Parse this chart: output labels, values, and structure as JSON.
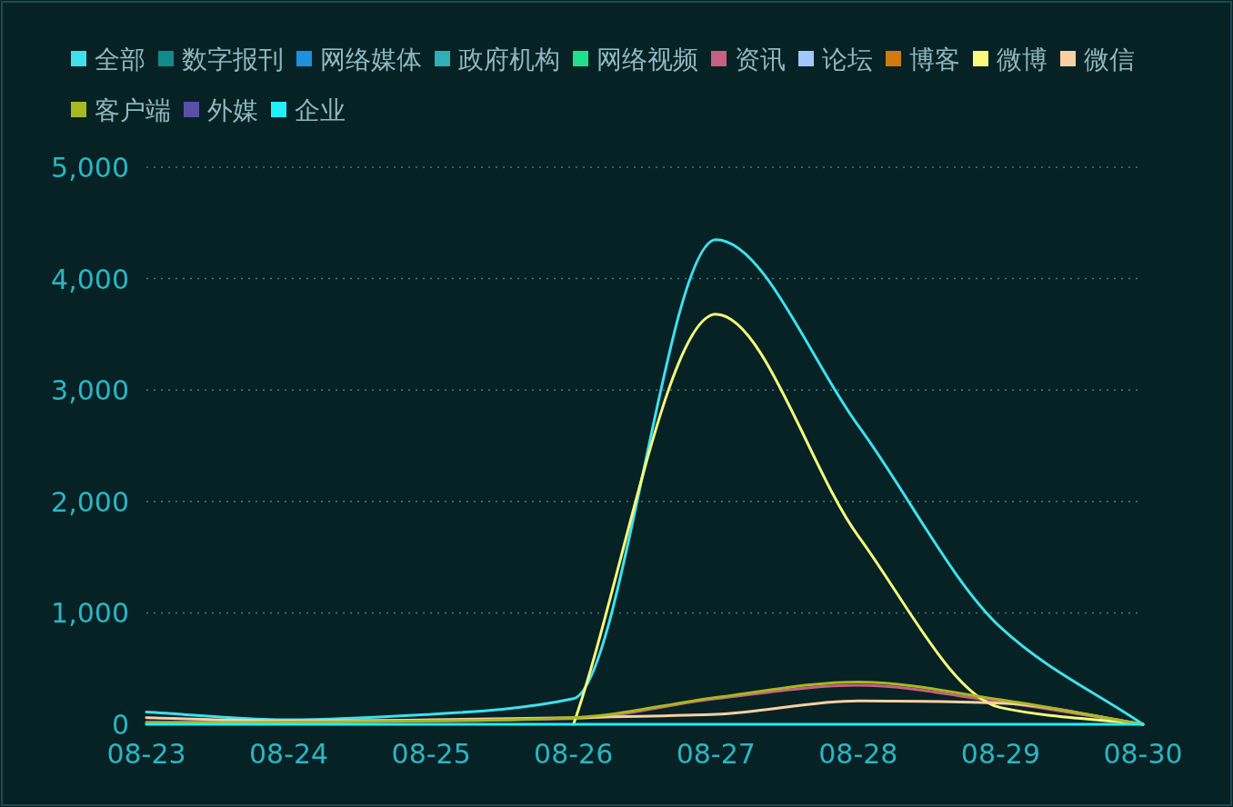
{
  "chart_data": {
    "type": "line",
    "categories": [
      "08-23",
      "08-24",
      "08-25",
      "08-26",
      "08-27",
      "08-28",
      "08-29",
      "08-30"
    ],
    "ylim": [
      0,
      5000
    ],
    "yticks": [
      0,
      {
        "value": 1000,
        "label": "1,000"
      },
      {
        "value": 2000,
        "label": "2,000"
      },
      {
        "value": 3000,
        "label": "3,000"
      },
      {
        "value": 4000,
        "label": "4,000"
      },
      {
        "value": 5000,
        "label": "5,000"
      }
    ],
    "grid": "y",
    "legend": "top",
    "marker": "none",
    "line_style": "solid",
    "series": [
      {
        "name": "全部",
        "color": "#3ee0ee",
        "values": [
          110,
          40,
          90,
          230,
          4350,
          2680,
          870,
          0
        ]
      },
      {
        "name": "数字报刊",
        "color": "#138a8a",
        "values": [
          null,
          null,
          null,
          null,
          null,
          null,
          null,
          null
        ]
      },
      {
        "name": "网络媒体",
        "color": "#1e90e0",
        "values": [
          null,
          null,
          null,
          null,
          null,
          null,
          null,
          null
        ]
      },
      {
        "name": "政府机构",
        "color": "#2fb0b8",
        "values": [
          null,
          null,
          null,
          null,
          null,
          null,
          null,
          null
        ]
      },
      {
        "name": "网络视频",
        "color": "#1fe08a",
        "values": [
          null,
          null,
          null,
          null,
          null,
          null,
          null,
          null
        ]
      },
      {
        "name": "资讯",
        "color": "#c86080",
        "values": [
          20,
          20,
          30,
          50,
          230,
          350,
          200,
          0
        ]
      },
      {
        "name": "论坛",
        "color": "#a0c8ff",
        "values": [
          null,
          null,
          null,
          null,
          null,
          null,
          null,
          null
        ]
      },
      {
        "name": "博客",
        "color": "#d07a10",
        "values": [
          null,
          null,
          null,
          null,
          null,
          null,
          null,
          null
        ]
      },
      {
        "name": "微博",
        "color": "#f8f87a",
        "values": [
          null,
          null,
          null,
          0,
          3680,
          1690,
          150,
          0
        ]
      },
      {
        "name": "微信",
        "color": "#f8d0a0",
        "values": [
          60,
          30,
          40,
          60,
          90,
          210,
          190,
          0
        ]
      },
      {
        "name": "客户端",
        "color": "#a8b820",
        "values": [
          10,
          20,
          30,
          60,
          240,
          380,
          220,
          0
        ]
      },
      {
        "name": "外媒",
        "color": "#5850a8",
        "values": [
          null,
          null,
          null,
          null,
          null,
          null,
          null,
          null
        ]
      },
      {
        "name": "企业",
        "color": "#20f0f8",
        "values": [
          0,
          0,
          0,
          0,
          0,
          0,
          0,
          0
        ]
      }
    ]
  }
}
